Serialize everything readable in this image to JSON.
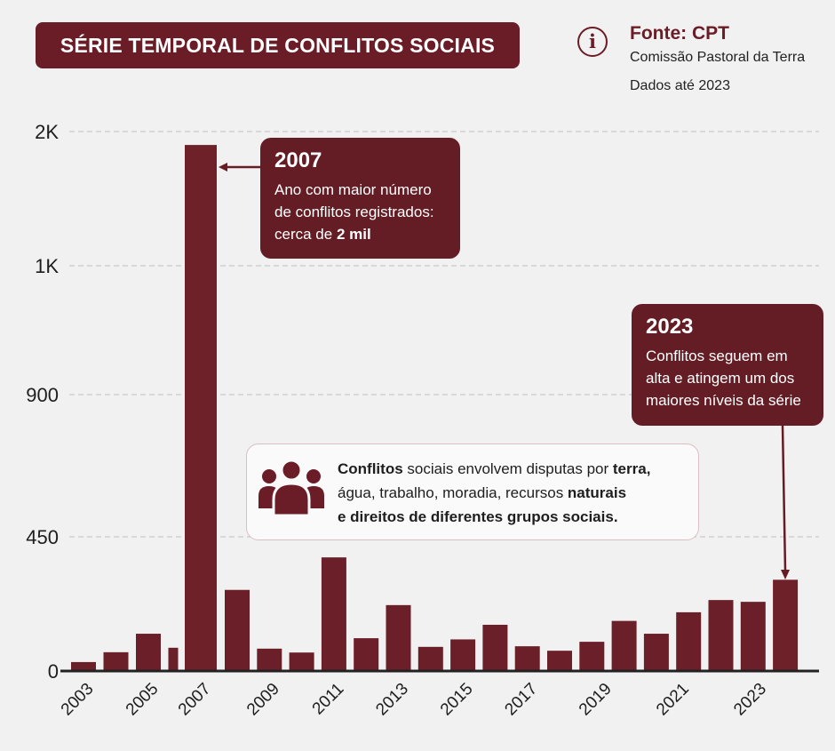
{
  "header": {
    "title": "SÉRIE TEMPORAL DE CONFLITOS SOCIAIS"
  },
  "source": {
    "icon": "info-icon",
    "icon_glyph": "i",
    "title": "Fonte: CPT",
    "line1": "Comissão Pastoral da Terra",
    "line2": "Dados até 2023"
  },
  "callout_2007": {
    "year": "2007",
    "line1": "Ano com maior número",
    "line2": "de conflitos registrados:",
    "line3_pre": "cerca de ",
    "line3_bold": "2 mil"
  },
  "callout_2023": {
    "year": "2023",
    "line1": "Conflitos seguem em",
    "line2": "alta e atingem um dos",
    "line3": "maiores níveis da série"
  },
  "note": {
    "icon": "people-icon",
    "bold1": "Conflitos",
    "text1": " sociais envolvem disputas por ",
    "bold2": "terra,",
    "line2a": "água, trabalho, moradia, recursos ",
    "bold3": "naturais",
    "line3": "e direitos de diferentes grupos sociais."
  },
  "colors": {
    "bar": "#6b1f28",
    "accent": "#6a1d26",
    "background": "#f2f1f1"
  },
  "chart_data": {
    "type": "bar",
    "title": "SÉRIE TEMPORAL DE CONFLITOS SOCIAIS",
    "xlabel": "",
    "ylabel": "",
    "y_ticks": [
      {
        "value": 0,
        "label": "0"
      },
      {
        "value": 450,
        "label": "450"
      },
      {
        "value": 900,
        "label": "900"
      },
      {
        "value": 1000,
        "label": "1K"
      },
      {
        "value": 2000,
        "label": "2K"
      }
    ],
    "ylim": [
      0,
      2000
    ],
    "grid": true,
    "values": [
      30,
      63,
      125,
      78,
      1900,
      272,
      75,
      62,
      381,
      110,
      221,
      81,
      106,
      155,
      83,
      68,
      98,
      168,
      125,
      197,
      238,
      232,
      306
    ],
    "x_tick_labels": [
      {
        "label": "2003",
        "at": 0
      },
      {
        "label": "2005",
        "at": 2
      },
      {
        "label": "2007",
        "at": 4
      },
      {
        "label": "2009",
        "at": 6
      },
      {
        "label": "2011",
        "at": 8
      },
      {
        "label": "2013",
        "at": 10
      },
      {
        "label": "2015",
        "at": 12
      },
      {
        "label": "2017",
        "at": 14
      },
      {
        "label": "2019",
        "at": 16.3
      },
      {
        "label": "2021",
        "at": 18.7
      },
      {
        "label": "2023",
        "at": 21.1
      }
    ],
    "highlighted": [
      {
        "bar_index": 4,
        "label": "2007"
      },
      {
        "bar_index": 22,
        "label": "2023"
      }
    ]
  }
}
